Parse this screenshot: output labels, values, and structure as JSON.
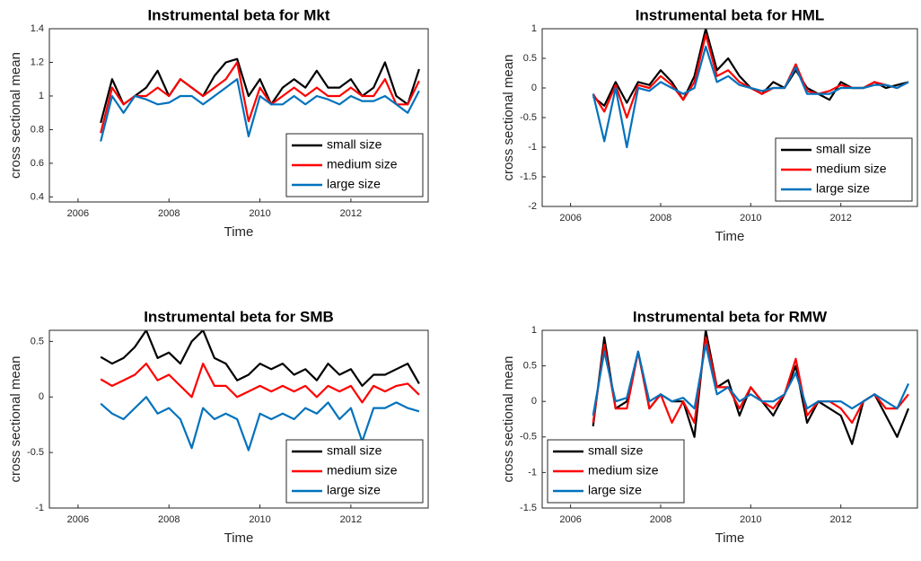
{
  "chart_data": [
    {
      "type": "line",
      "title": "Instrumental beta for Mkt",
      "xlabel": "Time",
      "ylabel": "cross sectional mean",
      "x": [
        2006.5,
        2006.75,
        2007,
        2007.25,
        2007.5,
        2007.75,
        2008,
        2008.25,
        2008.5,
        2008.75,
        2009,
        2009.25,
        2009.5,
        2009.75,
        2010,
        2010.25,
        2010.5,
        2010.75,
        2011,
        2011.25,
        2011.5,
        2011.75,
        2012,
        2012.25,
        2012.5,
        2012.75,
        2013,
        2013.25,
        2013.5
      ],
      "xlim": [
        2005.37,
        2013.7
      ],
      "xticks": [
        2006,
        2008,
        2010,
        2012
      ],
      "ylim": [
        0.37,
        1.4
      ],
      "yticks": [
        0.4,
        0.6,
        0.8,
        1,
        1.2,
        1.4
      ],
      "legend": "bottom-right",
      "series": [
        {
          "name": "small size",
          "color": "#000000",
          "values": [
            0.84,
            1.1,
            0.95,
            1.0,
            1.05,
            1.15,
            1.0,
            1.1,
            1.05,
            1.0,
            1.12,
            1.2,
            1.22,
            1.0,
            1.1,
            0.95,
            1.05,
            1.1,
            1.05,
            1.15,
            1.05,
            1.05,
            1.1,
            1.0,
            1.05,
            1.2,
            1.0,
            0.95,
            1.16
          ]
        },
        {
          "name": "medium size",
          "color": "#ff0000",
          "values": [
            0.78,
            1.05,
            0.95,
            1.0,
            1.0,
            1.05,
            1.0,
            1.1,
            1.05,
            1.0,
            1.05,
            1.1,
            1.2,
            0.85,
            1.05,
            0.95,
            1.0,
            1.05,
            1.0,
            1.05,
            1.0,
            1.0,
            1.05,
            1.0,
            1.0,
            1.1,
            0.95,
            0.95,
            1.09
          ]
        },
        {
          "name": "large size",
          "color": "#0072bd",
          "values": [
            0.73,
            1.0,
            0.9,
            1.0,
            0.98,
            0.95,
            0.96,
            1.0,
            1.0,
            0.95,
            1.0,
            1.05,
            1.1,
            0.76,
            1.0,
            0.95,
            0.95,
            1.0,
            0.95,
            1.0,
            0.98,
            0.95,
            1.0,
            0.97,
            0.97,
            1.0,
            0.95,
            0.9,
            1.03
          ]
        }
      ]
    },
    {
      "type": "line",
      "title": "Instrumental beta for HML",
      "xlabel": "Time",
      "ylabel": "cross sectional mean",
      "x": [
        2006.5,
        2006.75,
        2007,
        2007.25,
        2007.5,
        2007.75,
        2008,
        2008.25,
        2008.5,
        2008.75,
        2009,
        2009.25,
        2009.5,
        2009.75,
        2010,
        2010.25,
        2010.5,
        2010.75,
        2011,
        2011.25,
        2011.5,
        2011.75,
        2012,
        2012.25,
        2012.5,
        2012.75,
        2013,
        2013.25,
        2013.5
      ],
      "xlim": [
        2005.37,
        2013.7
      ],
      "xticks": [
        2006,
        2008,
        2010,
        2012
      ],
      "ylim": [
        -2,
        1
      ],
      "yticks": [
        -2,
        -1.5,
        -1,
        -0.5,
        0,
        0.5,
        1
      ],
      "legend": "bottom-right",
      "series": [
        {
          "name": "small size",
          "color": "#000000",
          "values": [
            -0.15,
            -0.3,
            0.1,
            -0.25,
            0.1,
            0.05,
            0.3,
            0.1,
            -0.2,
            0.2,
            1.0,
            0.3,
            0.5,
            0.2,
            0.0,
            -0.1,
            0.1,
            0.0,
            0.3,
            0.0,
            -0.1,
            -0.2,
            0.1,
            0.0,
            0.0,
            0.1,
            0.0,
            0.05,
            0.1
          ]
        },
        {
          "name": "medium size",
          "color": "#ff0000",
          "values": [
            -0.1,
            -0.4,
            0.05,
            -0.5,
            0.05,
            0.0,
            0.2,
            0.05,
            -0.2,
            0.1,
            0.9,
            0.2,
            0.3,
            0.1,
            0.0,
            -0.1,
            0.0,
            0.0,
            0.4,
            -0.05,
            -0.1,
            -0.05,
            0.05,
            0.0,
            0.0,
            0.1,
            0.05,
            0.0,
            0.1
          ]
        },
        {
          "name": "large size",
          "color": "#0072bd",
          "values": [
            -0.1,
            -0.9,
            0.0,
            -1.0,
            0.0,
            -0.05,
            0.1,
            0.0,
            -0.1,
            0.0,
            0.7,
            0.1,
            0.2,
            0.05,
            0.0,
            -0.05,
            0.0,
            0.0,
            0.35,
            -0.1,
            -0.1,
            -0.1,
            0.0,
            0.0,
            0.0,
            0.05,
            0.05,
            0.0,
            0.1
          ]
        }
      ]
    },
    {
      "type": "line",
      "title": "Instrumental beta for SMB",
      "xlabel": "Time",
      "ylabel": "cross sectional mean",
      "x": [
        2006.5,
        2006.75,
        2007,
        2007.25,
        2007.5,
        2007.75,
        2008,
        2008.25,
        2008.5,
        2008.75,
        2009,
        2009.25,
        2009.5,
        2009.75,
        2010,
        2010.25,
        2010.5,
        2010.75,
        2011,
        2011.25,
        2011.5,
        2011.75,
        2012,
        2012.25,
        2012.5,
        2012.75,
        2013,
        2013.25,
        2013.5
      ],
      "xlim": [
        2005.37,
        2013.7
      ],
      "xticks": [
        2006,
        2008,
        2010,
        2012
      ],
      "ylim": [
        -1,
        0.6
      ],
      "yticks": [
        -1,
        -0.5,
        0,
        0.5
      ],
      "legend": "bottom-right",
      "series": [
        {
          "name": "small size",
          "color": "#000000",
          "values": [
            0.36,
            0.3,
            0.35,
            0.45,
            0.6,
            0.35,
            0.4,
            0.3,
            0.5,
            0.6,
            0.35,
            0.3,
            0.15,
            0.2,
            0.3,
            0.25,
            0.3,
            0.2,
            0.25,
            0.15,
            0.3,
            0.2,
            0.25,
            0.1,
            0.2,
            0.2,
            0.25,
            0.3,
            0.12
          ]
        },
        {
          "name": "medium size",
          "color": "#ff0000",
          "values": [
            0.16,
            0.1,
            0.15,
            0.2,
            0.3,
            0.15,
            0.2,
            0.1,
            0.0,
            0.3,
            0.1,
            0.1,
            0.0,
            0.05,
            0.1,
            0.05,
            0.1,
            0.05,
            0.1,
            0.0,
            0.1,
            0.05,
            0.1,
            -0.05,
            0.1,
            0.05,
            0.1,
            0.12,
            0.02
          ]
        },
        {
          "name": "large size",
          "color": "#0072bd",
          "values": [
            -0.06,
            -0.15,
            -0.2,
            -0.1,
            0.0,
            -0.15,
            -0.1,
            -0.2,
            -0.46,
            -0.1,
            -0.2,
            -0.15,
            -0.2,
            -0.48,
            -0.15,
            -0.2,
            -0.15,
            -0.2,
            -0.1,
            -0.15,
            -0.05,
            -0.2,
            -0.1,
            -0.4,
            -0.1,
            -0.1,
            -0.05,
            -0.1,
            -0.13
          ]
        }
      ]
    },
    {
      "type": "line",
      "title": "Instrumental beta for RMW",
      "xlabel": "Time",
      "ylabel": "cross sectional mean",
      "x": [
        2006.5,
        2006.75,
        2007,
        2007.25,
        2007.5,
        2007.75,
        2008,
        2008.25,
        2008.5,
        2008.75,
        2009,
        2009.25,
        2009.5,
        2009.75,
        2010,
        2010.25,
        2010.5,
        2010.75,
        2011,
        2011.25,
        2011.5,
        2011.75,
        2012,
        2012.25,
        2012.5,
        2012.75,
        2013,
        2013.25,
        2013.5
      ],
      "xlim": [
        2005.37,
        2013.7
      ],
      "xticks": [
        2006,
        2008,
        2010,
        2012
      ],
      "ylim": [
        -1.5,
        1
      ],
      "yticks": [
        -1.5,
        -1,
        -0.5,
        0,
        0.5,
        1
      ],
      "legend": "bottom-left",
      "series": [
        {
          "name": "small size",
          "color": "#000000",
          "values": [
            -0.35,
            0.9,
            -0.1,
            0.0,
            0.7,
            -0.1,
            0.1,
            0.0,
            0.0,
            -0.5,
            1.0,
            0.2,
            0.3,
            -0.2,
            0.2,
            0.0,
            -0.2,
            0.1,
            0.5,
            -0.3,
            0.0,
            -0.1,
            -0.2,
            -0.6,
            0.0,
            0.1,
            -0.2,
            -0.5,
            -0.1
          ]
        },
        {
          "name": "medium size",
          "color": "#ff0000",
          "values": [
            -0.3,
            0.8,
            -0.1,
            -0.1,
            0.7,
            -0.1,
            0.1,
            -0.3,
            0.0,
            -0.3,
            0.9,
            0.2,
            0.2,
            -0.1,
            0.2,
            0.0,
            -0.1,
            0.1,
            0.6,
            -0.2,
            0.0,
            0.0,
            -0.1,
            -0.3,
            0.0,
            0.1,
            -0.1,
            -0.1,
            0.1
          ]
        },
        {
          "name": "large size",
          "color": "#0072bd",
          "values": [
            -0.2,
            0.7,
            0.0,
            0.05,
            0.7,
            0.0,
            0.1,
            0.0,
            0.05,
            -0.1,
            0.8,
            0.1,
            0.2,
            0.0,
            0.1,
            0.0,
            0.0,
            0.1,
            0.4,
            -0.1,
            0.0,
            0.0,
            0.0,
            -0.1,
            0.0,
            0.1,
            0.0,
            -0.1,
            0.25
          ]
        }
      ]
    }
  ]
}
